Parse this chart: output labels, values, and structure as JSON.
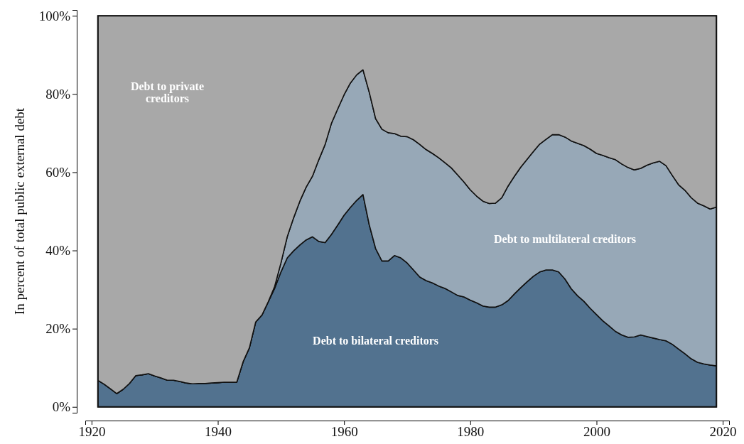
{
  "chart_data": {
    "type": "area",
    "stacked": true,
    "ylabel": "In percent of total public external debt",
    "x": [
      1921,
      1922,
      1923,
      1924,
      1925,
      1926,
      1927,
      1928,
      1929,
      1930,
      1931,
      1932,
      1933,
      1934,
      1935,
      1936,
      1937,
      1938,
      1939,
      1940,
      1941,
      1942,
      1943,
      1944,
      1945,
      1946,
      1947,
      1948,
      1949,
      1950,
      1951,
      1952,
      1953,
      1954,
      1955,
      1956,
      1957,
      1958,
      1959,
      1960,
      1961,
      1962,
      1963,
      1964,
      1965,
      1966,
      1967,
      1968,
      1969,
      1970,
      1971,
      1972,
      1973,
      1974,
      1975,
      1976,
      1977,
      1978,
      1979,
      1980,
      1981,
      1982,
      1983,
      1984,
      1985,
      1986,
      1987,
      1988,
      1989,
      1990,
      1991,
      1992,
      1993,
      1994,
      1995,
      1996,
      1997,
      1998,
      1999,
      2000,
      2001,
      2002,
      2003,
      2004,
      2005,
      2006,
      2007,
      2008,
      2009,
      2010,
      2011,
      2012,
      2013,
      2014,
      2015,
      2016,
      2017,
      2018,
      2019
    ],
    "series": [
      {
        "name": "Debt to bilateral creditors",
        "color": "#52728f",
        "values": [
          6.8,
          5.8,
          4.6,
          3.4,
          4.5,
          6.0,
          8.0,
          8.2,
          8.5,
          7.9,
          7.4,
          6.8,
          6.8,
          6.5,
          6.1,
          5.9,
          6.0,
          6.0,
          6.1,
          6.2,
          6.3,
          6.3,
          6.3,
          11.5,
          15.1,
          21.7,
          23.5,
          26.9,
          30.3,
          34.5,
          38.1,
          39.9,
          41.4,
          42.7,
          43.5,
          42.3,
          42.0,
          44.1,
          46.5,
          49.0,
          51.0,
          52.8,
          54.3,
          46.5,
          40.5,
          37.3,
          37.3,
          38.7,
          38.1,
          36.8,
          35.0,
          33.2,
          32.3,
          31.7,
          30.9,
          30.3,
          29.4,
          28.5,
          28.1,
          27.3,
          26.6,
          25.8,
          25.5,
          25.5,
          26.1,
          27.2,
          28.9,
          30.5,
          32.0,
          33.4,
          34.5,
          35.0,
          35.0,
          34.5,
          32.7,
          30.2,
          28.4,
          27.0,
          25.2,
          23.6,
          22.0,
          20.7,
          19.3,
          18.4,
          17.8,
          17.9,
          18.4,
          18.0,
          17.6,
          17.2,
          16.9,
          16.0,
          14.8,
          13.6,
          12.3,
          11.4,
          11.0,
          10.7,
          10.5
        ]
      },
      {
        "name": "Debt to multilateral creditors",
        "color": "#97a8b7",
        "values": [
          0,
          0,
          0,
          0,
          0,
          0,
          0,
          0,
          0,
          0,
          0,
          0,
          0,
          0,
          0,
          0,
          0,
          0,
          0,
          0,
          0,
          0,
          0,
          0,
          0,
          0,
          0,
          0,
          0.5,
          2.3,
          5.4,
          8.4,
          11.2,
          13.5,
          15.5,
          20.9,
          25.1,
          28.4,
          29.7,
          30.8,
          31.8,
          32.1,
          31.9,
          33.9,
          33.2,
          33.7,
          32.8,
          31.2,
          31.1,
          32.3,
          33.3,
          33.9,
          33.5,
          33.1,
          32.8,
          32.1,
          31.7,
          30.8,
          29.4,
          28.2,
          27.3,
          26.8,
          26.5,
          26.6,
          27.4,
          29.3,
          30.1,
          30.8,
          31.3,
          31.9,
          32.7,
          33.4,
          34.6,
          35.1,
          36.3,
          37.8,
          39.0,
          39.8,
          40.7,
          41.2,
          42.3,
          43.0,
          43.9,
          43.7,
          43.4,
          42.7,
          42.6,
          43.8,
          44.8,
          45.6,
          44.8,
          43.2,
          42.0,
          41.8,
          41.2,
          40.7,
          40.4,
          39.9,
          40.6
        ]
      },
      {
        "name": "Debt to private creditors",
        "color": "#a8a8a8",
        "values": [
          93.2,
          94.2,
          95.4,
          96.6,
          95.5,
          94.0,
          92.0,
          91.8,
          91.5,
          92.1,
          92.6,
          93.2,
          93.2,
          93.5,
          93.9,
          94.1,
          94.0,
          94.0,
          93.9,
          93.8,
          93.7,
          93.7,
          93.7,
          88.5,
          84.9,
          78.3,
          76.5,
          73.1,
          69.2,
          63.2,
          56.5,
          51.7,
          47.4,
          43.8,
          41.0,
          36.8,
          32.9,
          27.5,
          23.8,
          20.2,
          17.2,
          15.1,
          13.8,
          19.6,
          26.3,
          29.0,
          29.9,
          30.1,
          30.8,
          30.9,
          31.7,
          32.9,
          34.2,
          35.2,
          36.3,
          37.6,
          38.9,
          40.7,
          42.5,
          44.5,
          46.1,
          47.4,
          48.0,
          47.9,
          46.5,
          43.5,
          41.0,
          38.7,
          36.7,
          34.7,
          32.8,
          31.6,
          30.4,
          30.4,
          31.0,
          32.0,
          32.6,
          33.2,
          34.1,
          35.2,
          35.7,
          36.3,
          36.8,
          37.9,
          38.8,
          39.4,
          39.0,
          38.2,
          37.6,
          37.2,
          38.3,
          40.8,
          43.2,
          44.6,
          46.5,
          47.9,
          48.6,
          49.4,
          48.9
        ]
      }
    ],
    "xlim": [
      1919,
      2021
    ],
    "xticks": [
      1920,
      1940,
      1960,
      1980,
      2000,
      2020
    ],
    "ylim": [
      -1.5,
      101.5
    ],
    "yticks": [
      {
        "value": 0,
        "label": "0%"
      },
      {
        "value": 20,
        "label": "20%"
      },
      {
        "value": 40,
        "label": "40%"
      },
      {
        "value": 60,
        "label": "60%"
      },
      {
        "value": 80,
        "label": "80%"
      },
      {
        "value": 100,
        "label": "100%"
      }
    ]
  }
}
